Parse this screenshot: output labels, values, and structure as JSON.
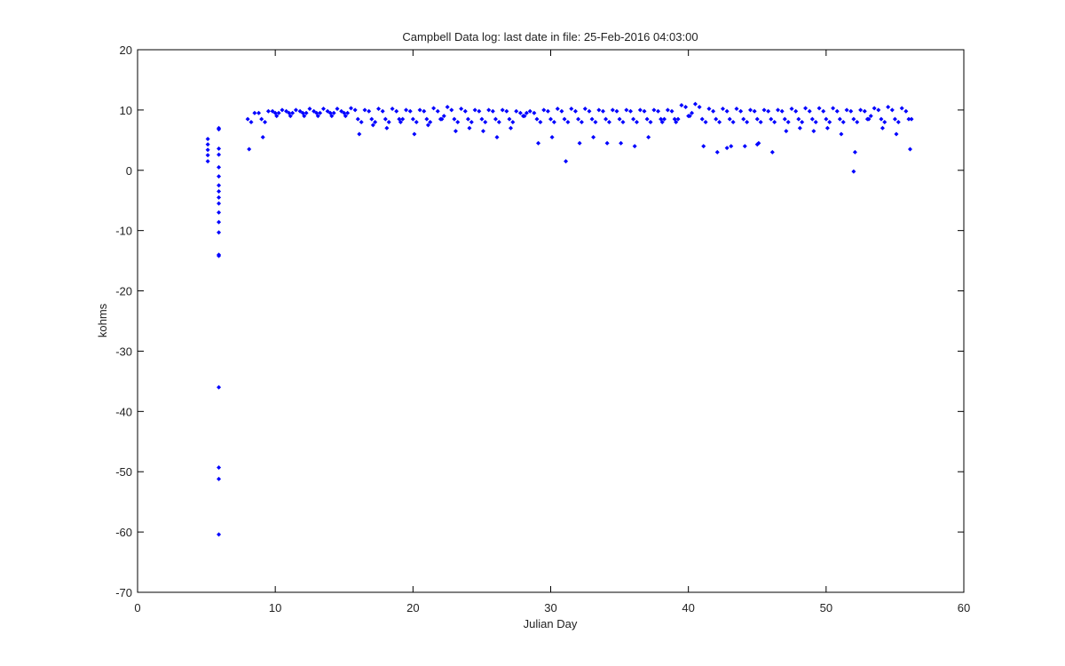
{
  "chart_data": {
    "type": "scatter",
    "title": "Campbell Data log: last date in file: 25-Feb-2016 04:03:00",
    "x_label": "Julian Day",
    "y_label": "kohms",
    "color": "#0000ff",
    "xlim": [
      0,
      60
    ],
    "xticks": [
      0,
      10,
      20,
      30,
      40,
      50,
      60
    ],
    "ylim": [
      -70,
      20
    ],
    "yticks": [
      -70,
      -60,
      -50,
      -40,
      -30,
      -20,
      -10,
      0,
      10,
      20
    ],
    "x": [
      5.1,
      5.1,
      5.1,
      5.1,
      5.1,
      5.9,
      5.9,
      5.9,
      5.9,
      5.9,
      5.9,
      5.9,
      5.9,
      5.9,
      5.9,
      5.9,
      5.9,
      5.9,
      5.9,
      5.9,
      5.9,
      5.9,
      5.9,
      5.9,
      8,
      8.1,
      8.25,
      8.5,
      8.8,
      9,
      9.1,
      9.25,
      9.5,
      9.8,
      10,
      10.1,
      10.25,
      10.5,
      10.8,
      11,
      11.1,
      11.25,
      11.5,
      11.8,
      12,
      12.1,
      12.25,
      12.5,
      12.8,
      13,
      13.1,
      13.25,
      13.5,
      13.8,
      14,
      14.1,
      14.25,
      14.5,
      14.8,
      15,
      15.1,
      15.25,
      15.5,
      15.8,
      16,
      16.1,
      16.25,
      16.5,
      16.8,
      17,
      17.1,
      17.25,
      17.5,
      17.8,
      18,
      18.1,
      18.25,
      18.5,
      18.8,
      19,
      19.1,
      19.25,
      19.5,
      19.8,
      20,
      20.1,
      20.25,
      20.5,
      20.8,
      21,
      21.1,
      21.25,
      21.5,
      21.8,
      22,
      22.1,
      22.25,
      22.5,
      22.8,
      23,
      23.1,
      23.25,
      23.5,
      23.8,
      24,
      24.1,
      24.25,
      24.5,
      24.8,
      25,
      25.1,
      25.25,
      25.5,
      25.8,
      26,
      26.1,
      26.25,
      26.5,
      26.8,
      27,
      27.1,
      27.25,
      27.5,
      27.8,
      28,
      28.1,
      28.25,
      28.5,
      28.8,
      29,
      29.1,
      29.25,
      29.5,
      29.8,
      30,
      30.1,
      30.25,
      30.5,
      30.8,
      31,
      31.1,
      31.25,
      31.5,
      31.8,
      32,
      32.1,
      32.25,
      32.5,
      32.8,
      33,
      33.1,
      33.25,
      33.5,
      33.8,
      34,
      34.1,
      34.25,
      34.5,
      34.8,
      35,
      35.1,
      35.25,
      35.5,
      35.8,
      36,
      36.1,
      36.25,
      36.5,
      36.8,
      37,
      37.1,
      37.25,
      37.5,
      37.8,
      38,
      38.1,
      38.25,
      38.5,
      38.8,
      39,
      39.1,
      39.25,
      39.5,
      39.8,
      40,
      40.1,
      40.25,
      40.5,
      40.8,
      41,
      41.1,
      41.25,
      41.5,
      41.8,
      42,
      42.1,
      42.25,
      42.5,
      42.8,
      43,
      43.1,
      43.25,
      43.5,
      43.8,
      44,
      44.1,
      44.25,
      44.5,
      44.8,
      45,
      45.1,
      45.25,
      45.5,
      45.8,
      46,
      46.1,
      46.25,
      46.5,
      46.8,
      47,
      47.1,
      47.25,
      47.5,
      47.8,
      48,
      48.1,
      48.25,
      48.5,
      48.8,
      49,
      49.1,
      49.25,
      49.5,
      49.8,
      50,
      50.1,
      50.25,
      50.5,
      50.8,
      51,
      51.1,
      51.25,
      51.5,
      51.8,
      52,
      52.1,
      52.25,
      52.5,
      52.8,
      53,
      53.1,
      53.25,
      53.5,
      53.8,
      54,
      54.1,
      54.25,
      54.5,
      54.8,
      55,
      55.1,
      55.25,
      55.5,
      55.8,
      56,
      56.1,
      56.2,
      42.8,
      45.0,
      52.0
    ],
    "values": [
      5.2,
      4.3,
      3.4,
      2.5,
      1.5,
      7.0,
      6.8,
      3.6,
      2.6,
      0.5,
      -1.0,
      -2.5,
      -3.5,
      -4.5,
      -5.5,
      -7.0,
      -8.6,
      -10.3,
      -14.0,
      -14.2,
      -36.0,
      -49.3,
      -51.2,
      -60.4,
      8.5,
      3.5,
      8,
      9.5,
      9.5,
      8.5,
      5.5,
      8,
      9.8,
      9.8,
      9.5,
      9,
      9.5,
      10,
      9.8,
      9.5,
      9,
      9.5,
      10,
      9.8,
      9.5,
      9,
      9.5,
      10.2,
      9.8,
      9.5,
      9,
      9.5,
      10.2,
      9.8,
      9.5,
      9,
      9.5,
      10.2,
      9.8,
      9.5,
      9,
      9.5,
      10.3,
      10,
      8.5,
      6,
      8,
      10,
      9.8,
      8.5,
      7.5,
      8,
      10.2,
      9.8,
      8.5,
      7,
      8,
      10.2,
      9.8,
      8.5,
      8,
      8.5,
      10,
      9.8,
      8.5,
      6,
      8,
      10,
      9.8,
      8.5,
      7.5,
      8,
      10.3,
      9.8,
      8.5,
      8.5,
      9,
      10.5,
      10,
      8.5,
      6.5,
      8,
      10.2,
      9.8,
      8.5,
      7,
      8,
      10,
      9.8,
      8.5,
      6.5,
      8,
      10,
      9.8,
      8.5,
      5.5,
      8,
      10,
      9.8,
      8.5,
      7,
      8,
      9.8,
      9.5,
      9,
      9,
      9.5,
      9.8,
      9.5,
      8.5,
      4.5,
      8,
      10,
      9.8,
      8.5,
      5.5,
      8,
      10.2,
      9.8,
      8.5,
      1.5,
      8,
      10.2,
      9.8,
      8.5,
      4.5,
      8,
      10.2,
      9.8,
      8.5,
      5.5,
      8,
      10,
      9.8,
      8.5,
      4.5,
      8,
      10,
      9.8,
      8.5,
      4.5,
      8,
      10,
      9.8,
      8.5,
      4,
      8,
      10,
      9.8,
      8.5,
      5.5,
      8,
      10,
      9.8,
      8.5,
      8,
      8.5,
      10,
      9.8,
      8.5,
      8,
      8.5,
      10.8,
      10.5,
      9,
      9,
      9.5,
      11,
      10.5,
      8.5,
      4,
      8,
      10.2,
      9.8,
      8.5,
      3,
      8,
      10.2,
      9.8,
      8.5,
      4,
      8,
      10.2,
      9.8,
      8.5,
      4,
      8,
      10,
      9.8,
      8.5,
      4.5,
      8,
      10,
      9.8,
      8.5,
      3,
      8,
      10,
      9.8,
      8.5,
      6.5,
      8,
      10.2,
      9.8,
      8.5,
      7,
      8,
      10.3,
      9.8,
      8.5,
      6.5,
      8,
      10.3,
      9.8,
      8.5,
      7,
      8,
      10.3,
      9.8,
      8.5,
      6,
      8,
      10,
      9.8,
      8.5,
      3,
      8,
      10,
      9.8,
      8.5,
      8.5,
      9,
      10.3,
      10,
      8.5,
      7,
      8,
      10.5,
      10,
      8.5,
      6,
      8,
      10.3,
      9.8,
      8.5,
      3.5,
      8.5,
      3.7,
      4.3,
      -0.2
    ]
  }
}
